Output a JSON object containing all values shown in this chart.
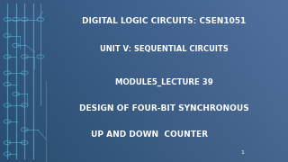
{
  "bg_color_tl": "#2a5070",
  "bg_color_br": "#1a3a58",
  "bg_color_mid": "#2e6080",
  "text_color": "#ffffff",
  "circuit_color": "#5ab0d0",
  "line1": "DIGITAL LOGIC CIRCUITS: CSEN1051",
  "line2": "UNIT V: SEQUENTIAL CIRCUITS",
  "line3": "MODULE5_LECTURE 39",
  "line4": "DESIGN OF FOUR-BIT SYNCHRONOUS",
  "line5": "UP AND DOWN  COUNTER",
  "slide_num": "1",
  "figsize": [
    3.2,
    1.8
  ],
  "dpi": 100
}
